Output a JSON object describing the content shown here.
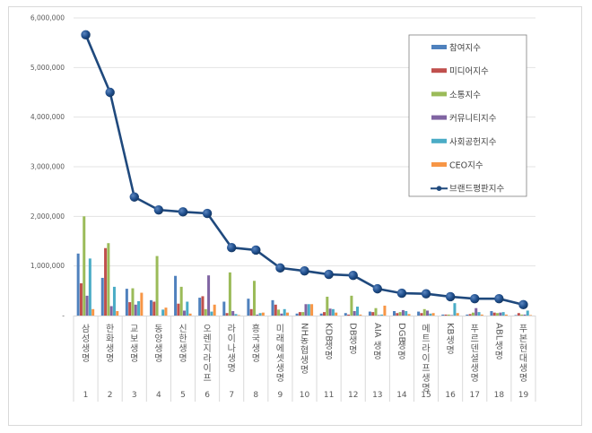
{
  "chart_data": {
    "type": "bar+line",
    "title": "",
    "xlabel": "",
    "ylabel": "",
    "ylim": [
      0,
      6000000
    ],
    "yticks": [
      0,
      1000000,
      2000000,
      3000000,
      4000000,
      5000000,
      6000000
    ],
    "ytick_labels": [
      "-",
      "1,000,000",
      "2,000,000",
      "3,000,000",
      "4,000,000",
      "5,000,000",
      "6,000,000"
    ],
    "grid": true,
    "legend_position": "upper right (inside plot)",
    "categories": [
      "삼성생명",
      "한화생명",
      "교보생명",
      "동양생명",
      "신한생명",
      "오렌지라이프",
      "라이나생명",
      "흥국생명",
      "미래에셋생명",
      "NH농협생명",
      "KDB생명",
      "DB생명",
      "AIA생명",
      "DGB생명",
      "메트라이프생명",
      "KB생명",
      "푸르덴셜생명",
      "ABL생명",
      "푸본현대생명"
    ],
    "ranks": [
      "1",
      "2",
      "3",
      "4",
      "5",
      "6",
      "7",
      "8",
      "9",
      "10",
      "11",
      "12",
      "13",
      "14",
      "15",
      "16",
      "17",
      "18",
      "19"
    ],
    "series": [
      {
        "name": "참여지수",
        "type": "bar",
        "color": "#4f81bd",
        "values": [
          1250000,
          760000,
          540000,
          310000,
          800000,
          360000,
          280000,
          340000,
          310000,
          40000,
          40000,
          50000,
          80000,
          90000,
          80000,
          20000,
          20000,
          90000,
          10000
        ]
      },
      {
        "name": "미디어지수",
        "type": "bar",
        "color": "#c0504d",
        "values": [
          650000,
          1360000,
          270000,
          280000,
          240000,
          390000,
          50000,
          130000,
          220000,
          70000,
          70000,
          20000,
          70000,
          50000,
          50000,
          20000,
          30000,
          60000,
          50000
        ]
      },
      {
        "name": "소통지수",
        "type": "bar",
        "color": "#9bbb59",
        "values": [
          2000000,
          1460000,
          550000,
          1200000,
          580000,
          130000,
          870000,
          700000,
          120000,
          70000,
          380000,
          400000,
          150000,
          70000,
          130000,
          20000,
          60000,
          50000,
          20000
        ]
      },
      {
        "name": "커뮤니티지수",
        "type": "bar",
        "color": "#8064a2",
        "values": [
          400000,
          190000,
          220000,
          0,
          100000,
          810000,
          90000,
          20000,
          40000,
          230000,
          140000,
          90000,
          10000,
          110000,
          100000,
          10000,
          150000,
          60000,
          20000
        ]
      },
      {
        "name": "사회공헌지수",
        "type": "bar",
        "color": "#4bacc6",
        "values": [
          1150000,
          580000,
          290000,
          120000,
          280000,
          80000,
          30000,
          50000,
          130000,
          230000,
          130000,
          180000,
          20000,
          90000,
          40000,
          250000,
          70000,
          70000,
          100000
        ]
      },
      {
        "name": "CEO지수",
        "type": "bar",
        "color": "#f79646",
        "values": [
          130000,
          90000,
          460000,
          160000,
          40000,
          220000,
          10000,
          60000,
          60000,
          230000,
          60000,
          20000,
          200000,
          30000,
          50000,
          50000,
          20000,
          20000,
          10000
        ]
      },
      {
        "name": "브랜드평판지수",
        "type": "line",
        "color": "#1f497d",
        "values": [
          5660000,
          4500000,
          2390000,
          2130000,
          2090000,
          2060000,
          1370000,
          1320000,
          960000,
          900000,
          830000,
          810000,
          540000,
          450000,
          440000,
          380000,
          340000,
          340000,
          220000
        ]
      }
    ]
  }
}
